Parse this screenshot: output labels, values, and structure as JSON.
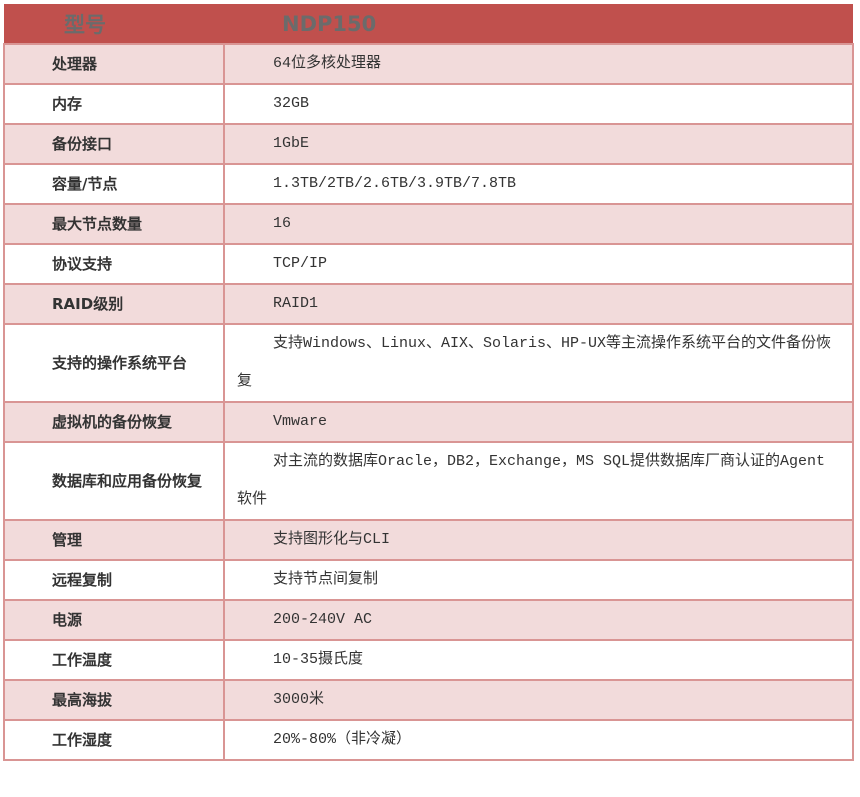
{
  "header": {
    "label": "型号",
    "value": "NDP150"
  },
  "rows": [
    {
      "label": "处理器",
      "value": "64位多核处理器"
    },
    {
      "label": "内存",
      "value": "32GB"
    },
    {
      "label": "备份接口",
      "value": "1GbE"
    },
    {
      "label": "容量/节点",
      "value": "1.3TB/2TB/2.6TB/3.9TB/7.8TB"
    },
    {
      "label": "最大节点数量",
      "value": "16"
    },
    {
      "label": "协议支持",
      "value": "TCP/IP"
    },
    {
      "label": "RAID级别",
      "value": "RAID1"
    },
    {
      "label": "支持的操作系统平台",
      "value": "支持Windows、Linux、AIX、Solaris、HP-UX等主流操作系统平台的文件备份恢复"
    },
    {
      "label": "虚拟机的备份恢复",
      "value": "Vmware"
    },
    {
      "label": "数据库和应用备份恢复",
      "value": "对主流的数据库Oracle，DB2，Exchange，MS SQL提供数据库厂商认证的Agent软件"
    },
    {
      "label": "管理",
      "value": "支持图形化与CLI"
    },
    {
      "label": "远程复制",
      "value": "支持节点间复制"
    },
    {
      "label": "电源",
      "value": "200-240V AC"
    },
    {
      "label": "工作温度",
      "value": "10-35摄氏度"
    },
    {
      "label": "最高海拔",
      "value": "3000米"
    },
    {
      "label": "工作湿度",
      "value": "20%-80%（非冷凝）"
    }
  ]
}
